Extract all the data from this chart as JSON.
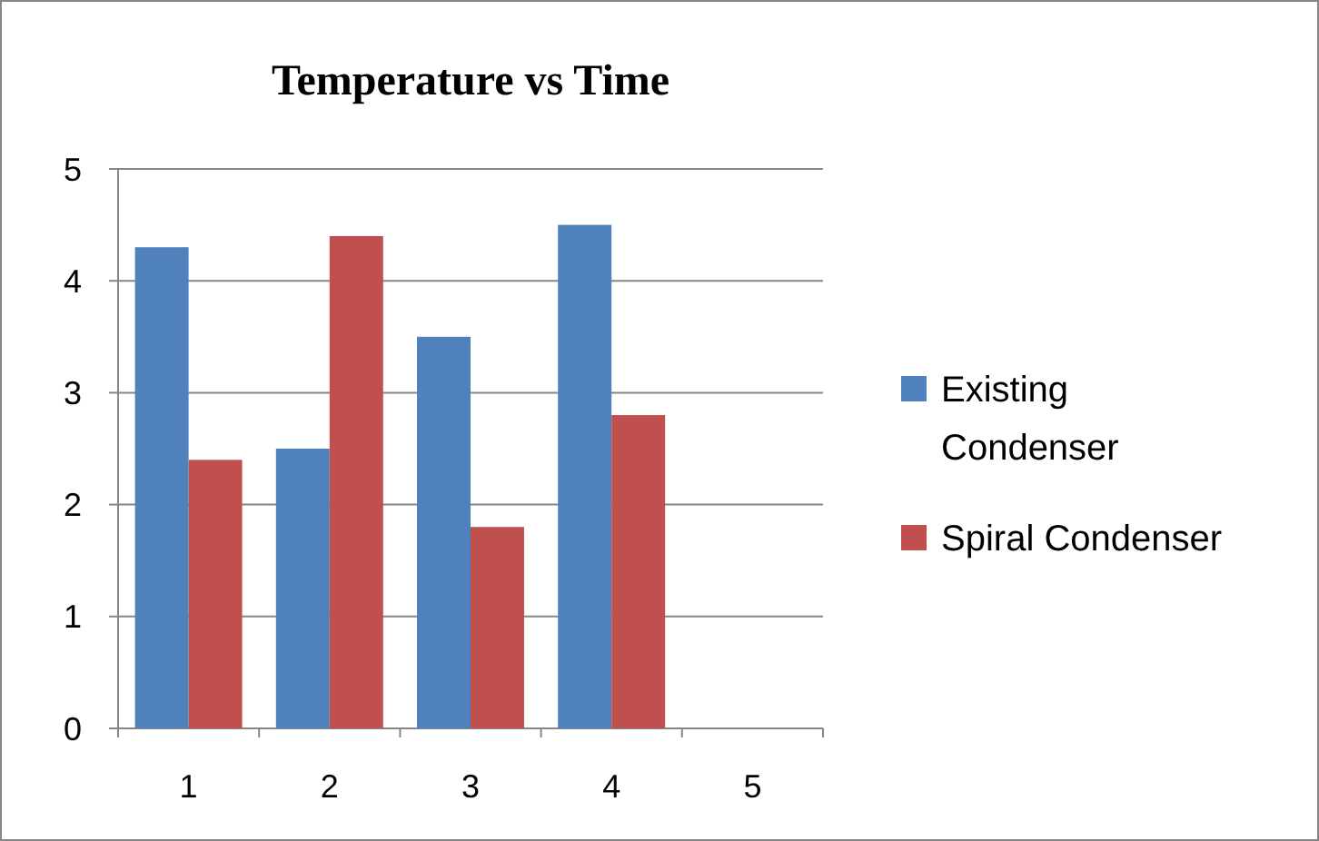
{
  "chart_data": {
    "type": "bar",
    "title": "Temperature vs Time",
    "categories": [
      "1",
      "2",
      "3",
      "4",
      "5"
    ],
    "series": [
      {
        "name": "Existing Condenser",
        "color": "#4f81bd",
        "values": [
          4.3,
          2.5,
          3.5,
          4.5,
          null
        ]
      },
      {
        "name": "Spiral Condenser",
        "color": "#c0504d",
        "values": [
          2.4,
          4.4,
          1.8,
          2.8,
          null
        ]
      }
    ],
    "ylim": [
      0,
      5
    ],
    "yticks": [
      0,
      1,
      2,
      3,
      4,
      5
    ],
    "grid": "y",
    "legend": "right"
  }
}
